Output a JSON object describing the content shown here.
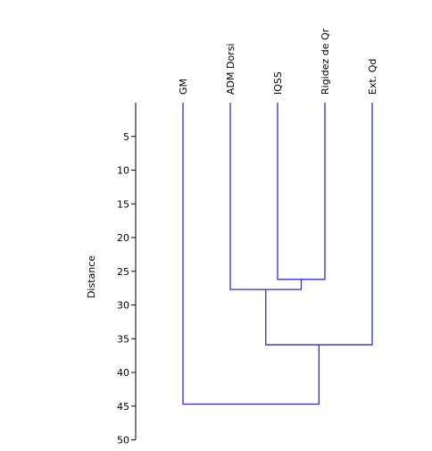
{
  "chart_data": {
    "type": "dendrogram",
    "ylabel": "Distance",
    "ylim": [
      0,
      50
    ],
    "yticks": [
      5,
      10,
      15,
      20,
      25,
      30,
      35,
      40,
      45,
      50
    ],
    "grid": false,
    "leaves": [
      "GM",
      "ADM Dorsi",
      "IQSS",
      "Rigidez de Qr",
      "Ext. Qd"
    ],
    "merges": [
      {
        "left": "IQSS",
        "right": "Rigidez de Qr",
        "distance": 26.2
      },
      {
        "left": "ADM Dorsi",
        "right": "IQSS + Rigidez de Qr",
        "distance": 27.7
      },
      {
        "left": "ADM Dorsi + IQSS + Rigidez de Qr",
        "right": "Ext. Qd",
        "distance": 35.9
      },
      {
        "left": "GM",
        "right": "ADM Dorsi + IQSS + Rigidez de Qr + Ext. Qd",
        "distance": 44.7
      }
    ],
    "link_color": "#2b2bd6"
  }
}
